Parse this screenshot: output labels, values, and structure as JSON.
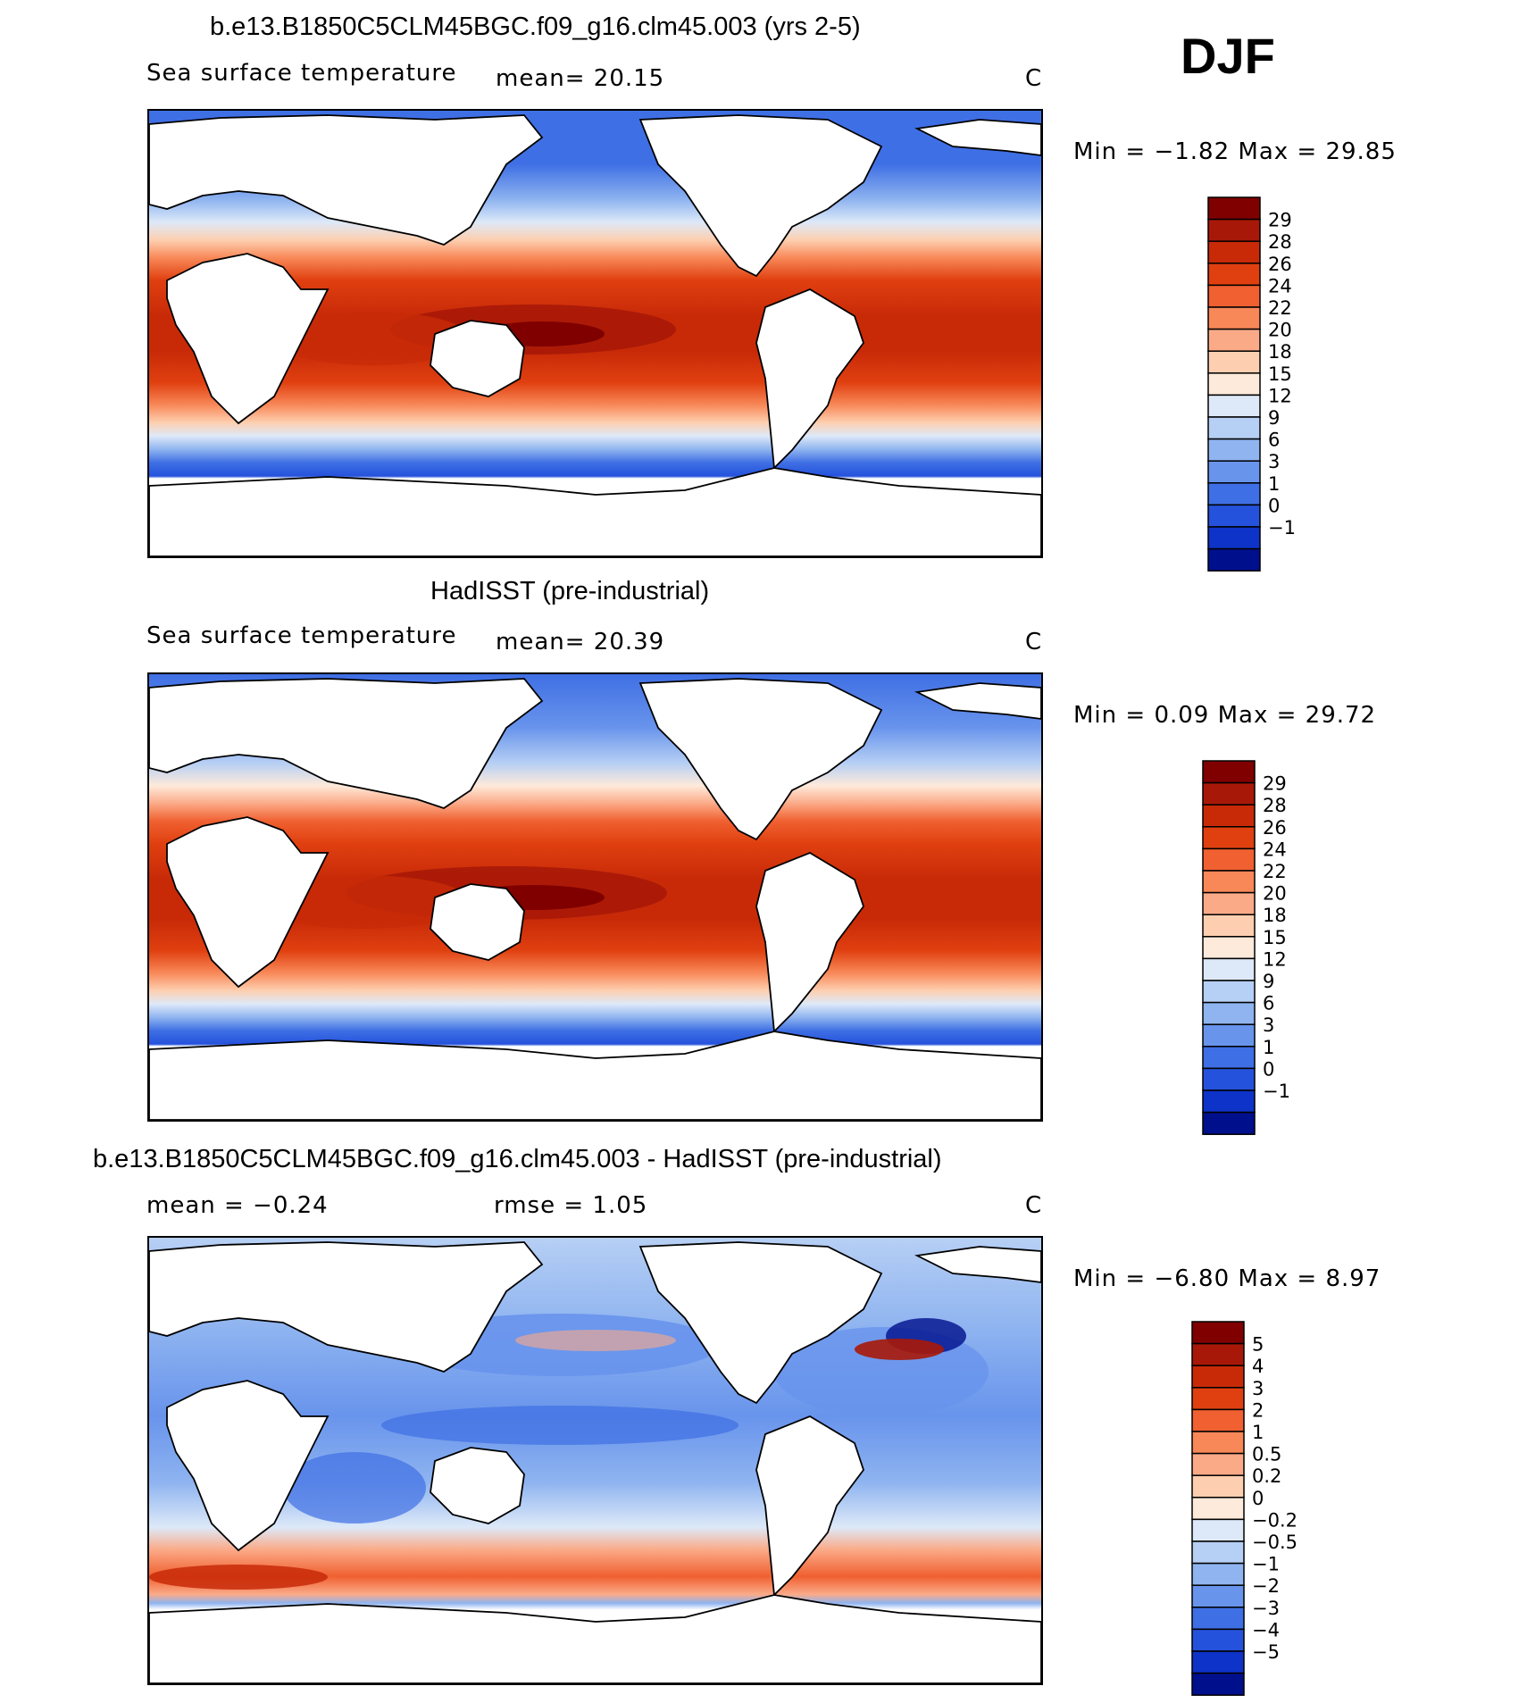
{
  "season": "DJF",
  "panels": [
    {
      "title": "b.e13.B1850C5CLM45BGC.f09_g16.clm45.003 (yrs 2-5)",
      "left_label": "Sea surface temperature",
      "center_label": "mean=   20.15",
      "units": "C",
      "minmax": "Min =   −1.82  Max =   29.85",
      "colorbar": {
        "labels": [
          "29",
          "28",
          "26",
          "24",
          "22",
          "20",
          "18",
          "15",
          "12",
          "9",
          "6",
          "3",
          "1",
          "0",
          "−1"
        ],
        "colors": [
          "#800000",
          "#a81808",
          "#c82a08",
          "#e04010",
          "#f06030",
          "#f88858",
          "#fbaa88",
          "#fdcfb0",
          "#feeadb",
          "#dde9f8",
          "#b6cff4",
          "#8fb4f0",
          "#6894ec",
          "#3f6fe4",
          "#2552dc",
          "#0d33c8",
          "#000f8c"
        ]
      }
    },
    {
      "title": "HadISST (pre-industrial)",
      "left_label": "Sea surface temperature",
      "center_label": "mean=   20.39",
      "units": "C",
      "minmax": "Min =    0.09  Max =   29.72",
      "colorbar": {
        "labels": [
          "29",
          "28",
          "26",
          "24",
          "22",
          "20",
          "18",
          "15",
          "12",
          "9",
          "6",
          "3",
          "1",
          "0",
          "−1"
        ],
        "colors": [
          "#800000",
          "#a81808",
          "#c82a08",
          "#e04010",
          "#f06030",
          "#f88858",
          "#fbaa88",
          "#fdcfb0",
          "#feeadb",
          "#dde9f8",
          "#b6cff4",
          "#8fb4f0",
          "#6894ec",
          "#3f6fe4",
          "#2552dc",
          "#0d33c8",
          "#000f8c"
        ]
      }
    },
    {
      "title": "b.e13.B1850C5CLM45BGC.f09_g16.clm45.003 - HadISST (pre-industrial)",
      "left_label": "mean =   −0.24",
      "center_label": "rmse =    1.05",
      "units": "C",
      "minmax": "Min =   −6.80  Max =    8.97",
      "colorbar": {
        "labels": [
          "5",
          "4",
          "3",
          "2",
          "1",
          "0.5",
          "0.2",
          "0",
          "−0.2",
          "−0.5",
          "−1",
          "−2",
          "−3",
          "−4",
          "−5"
        ],
        "colors": [
          "#800000",
          "#a81808",
          "#c82a08",
          "#e04010",
          "#f06030",
          "#f88858",
          "#fbaa88",
          "#fdcfb0",
          "#feeadb",
          "#dde9f8",
          "#b6cff4",
          "#8fb4f0",
          "#6894ec",
          "#3f6fe4",
          "#2552dc",
          "#0d33c8",
          "#000f8c"
        ]
      }
    }
  ]
}
